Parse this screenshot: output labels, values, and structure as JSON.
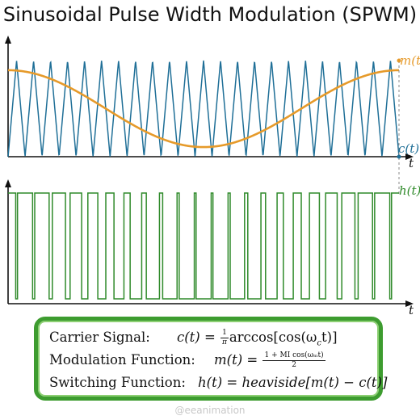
{
  "title": "Sinusoidal Pulse Width Modulation (SPWM)",
  "plot_labels": {
    "modulation": "m(t)",
    "carrier": "c(t)",
    "switching": "h(t)",
    "time_axis": "t"
  },
  "colors": {
    "carrier": "#1f6f97",
    "modulation": "#e69a2a",
    "switching": "#2f8a2a",
    "axis": "#111111",
    "dashed_marker": "#888888",
    "box_border": "#3d9c2f"
  },
  "signals": {
    "carrier_cycles": 23,
    "modulation_cycles": 1,
    "modulation_index": 0.8
  },
  "formulas": {
    "carrier": {
      "label": "Carrier Signal:",
      "lhs": "c(t) =",
      "frac_num": "1",
      "frac_den": "π",
      "rhs": "arccos[cos(ω",
      "sub": "c",
      "tail": "t)]"
    },
    "modulation": {
      "label": "Modulation Function:",
      "lhs": "m(t) =",
      "frac_num": "1 + MI cos(ωₘt)",
      "frac_den": "2"
    },
    "switching": {
      "label": "Switching Function:",
      "lhs": "h(t) =",
      "rhs": "heaviside[m(t) − c(t)]"
    }
  },
  "watermark": "@eeanimation"
}
